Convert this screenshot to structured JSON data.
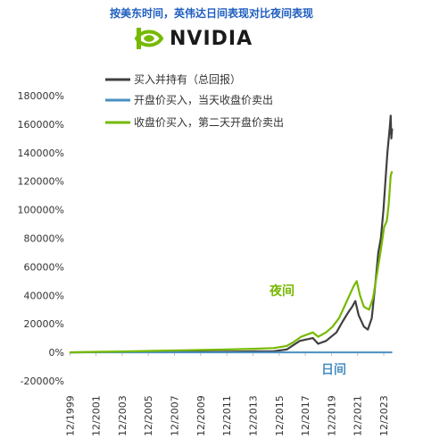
{
  "header": {
    "title": "按美东时间，英伟达日间表现对比夜间表现",
    "logo_text": "NVIDIA",
    "logo_color": "#76b900"
  },
  "chart_data": {
    "type": "line",
    "ylim": [
      -20000,
      180000
    ],
    "yticks": [
      -20000,
      0,
      20000,
      40000,
      60000,
      80000,
      100000,
      120000,
      140000,
      160000,
      180000
    ],
    "ytick_labels": [
      "-20000%",
      "0%",
      "20000%",
      "40000%",
      "60000%",
      "80000%",
      "100000%",
      "120000%",
      "140000%",
      "160000%",
      "180000%"
    ],
    "xlim": [
      1999.9,
      2024.6
    ],
    "xticks": [
      1999.92,
      2001.92,
      2003.92,
      2005.92,
      2007.92,
      2009.92,
      2011.92,
      2013.92,
      2015.92,
      2017.92,
      2019.92,
      2021.92,
      2023.92
    ],
    "xtick_labels": [
      "12/1999",
      "12/2001",
      "12/2003",
      "12/2005",
      "12/2007",
      "12/2009",
      "12/2011",
      "12/2013",
      "12/2015",
      "12/2017",
      "12/2019",
      "12/2021",
      "12/2023"
    ],
    "grid": false,
    "legend_position": "top-center",
    "series": [
      {
        "name": "买入并持有（总回报）",
        "color": "#404040",
        "points": [
          [
            1999.9,
            0
          ],
          [
            2002,
            200
          ],
          [
            2004,
            300
          ],
          [
            2007,
            600
          ],
          [
            2009,
            300
          ],
          [
            2012,
            500
          ],
          [
            2014,
            700
          ],
          [
            2015.5,
            800
          ],
          [
            2016.5,
            2000
          ],
          [
            2017,
            5000
          ],
          [
            2017.5,
            8000
          ],
          [
            2018.5,
            10000
          ],
          [
            2018.9,
            6000
          ],
          [
            2019.5,
            8000
          ],
          [
            2020.3,
            14000
          ],
          [
            2020.8,
            22000
          ],
          [
            2021.2,
            28000
          ],
          [
            2021.5,
            32000
          ],
          [
            2021.75,
            36000
          ],
          [
            2022,
            26000
          ],
          [
            2022.4,
            18000
          ],
          [
            2022.7,
            16000
          ],
          [
            2023,
            24000
          ],
          [
            2023.3,
            50000
          ],
          [
            2023.5,
            70000
          ],
          [
            2023.7,
            80000
          ],
          [
            2023.9,
            100000
          ],
          [
            2024.05,
            120000
          ],
          [
            2024.2,
            140000
          ],
          [
            2024.3,
            150000
          ],
          [
            2024.38,
            158000
          ],
          [
            2024.45,
            166000
          ],
          [
            2024.5,
            150000
          ],
          [
            2024.56,
            157000
          ]
        ]
      },
      {
        "name": "开盘价买入，当天收盘价卖出",
        "color": "#4a90c2",
        "points": [
          [
            1999.9,
            0
          ],
          [
            2024.56,
            0
          ]
        ]
      },
      {
        "name": "收盘价买入，第二天开盘价卖出",
        "color": "#76b900",
        "points": [
          [
            1999.9,
            0
          ],
          [
            2002,
            400
          ],
          [
            2004,
            600
          ],
          [
            2007,
            1200
          ],
          [
            2009,
            1500
          ],
          [
            2012,
            2000
          ],
          [
            2014,
            2500
          ],
          [
            2015.5,
            3000
          ],
          [
            2016.5,
            4500
          ],
          [
            2017,
            7000
          ],
          [
            2017.6,
            11000
          ],
          [
            2018.5,
            14000
          ],
          [
            2018.9,
            11000
          ],
          [
            2019.5,
            14000
          ],
          [
            2020,
            18000
          ],
          [
            2020.5,
            24000
          ],
          [
            2020.9,
            32000
          ],
          [
            2021.3,
            40000
          ],
          [
            2021.6,
            46000
          ],
          [
            2021.85,
            50000
          ],
          [
            2022.1,
            40000
          ],
          [
            2022.4,
            32000
          ],
          [
            2022.8,
            30000
          ],
          [
            2023.1,
            38000
          ],
          [
            2023.4,
            55000
          ],
          [
            2023.7,
            72000
          ],
          [
            2023.95,
            88000
          ],
          [
            2024.15,
            92000
          ],
          [
            2024.3,
            104000
          ],
          [
            2024.45,
            124000
          ],
          [
            2024.56,
            127000
          ]
        ]
      }
    ],
    "annotations": [
      {
        "text": "夜间",
        "color": "#76b900"
      },
      {
        "text": "日间",
        "color": "#4a90c2"
      }
    ]
  }
}
